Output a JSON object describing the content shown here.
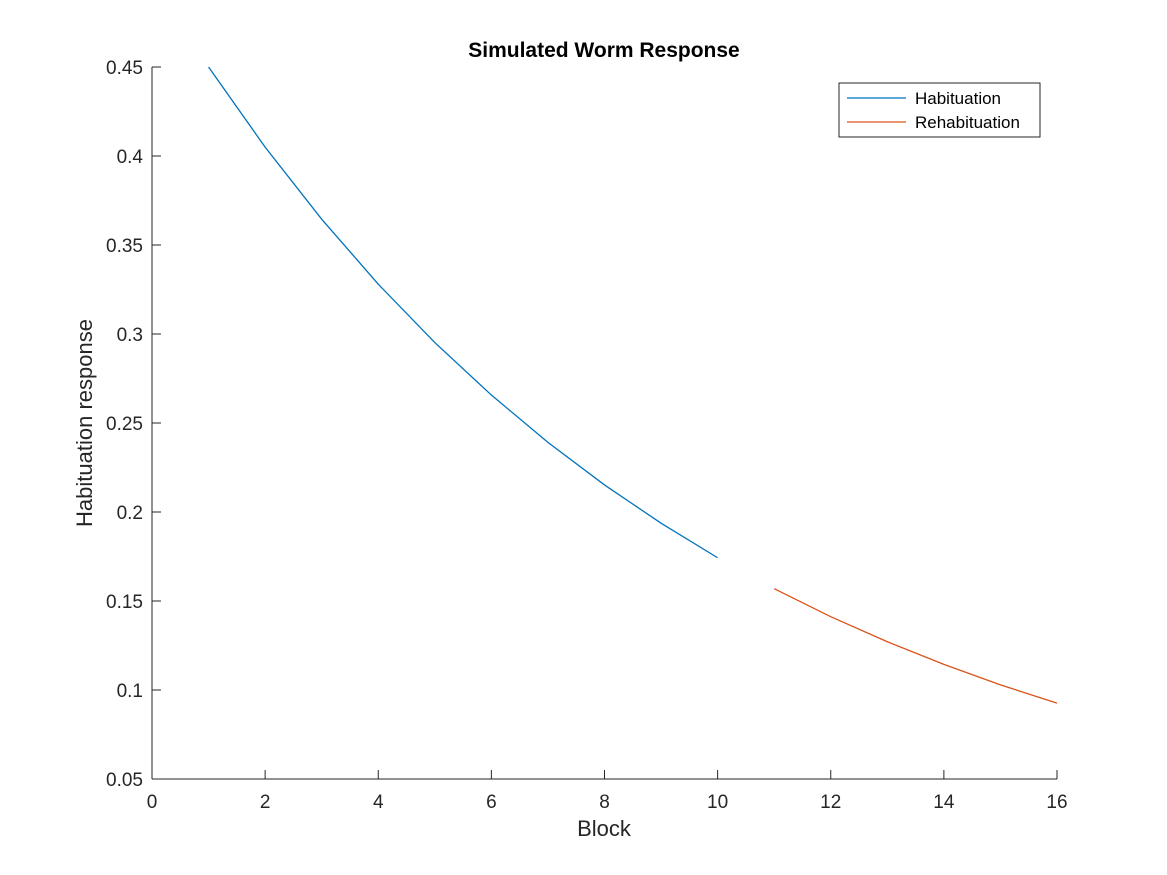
{
  "chart_data": {
    "type": "line",
    "title": "Simulated Worm Response",
    "xlabel": "Block",
    "ylabel": "Habituation response",
    "xlim": [
      0,
      16
    ],
    "ylim": [
      0.05,
      0.45
    ],
    "xticks": [
      0,
      2,
      4,
      6,
      8,
      10,
      12,
      14,
      16
    ],
    "xtick_labels": [
      "0",
      "2",
      "4",
      "6",
      "8",
      "10",
      "12",
      "14",
      "16"
    ],
    "yticks": [
      0.05,
      0.1,
      0.15,
      0.2,
      0.25,
      0.3,
      0.35,
      0.4,
      0.45
    ],
    "ytick_labels": [
      "0.05",
      "0.1",
      "0.15",
      "0.2",
      "0.25",
      "0.3",
      "0.35",
      "0.4",
      "0.45"
    ],
    "grid": false,
    "legend_position": "top-right",
    "series": [
      {
        "name": "Habituation",
        "color": "#0072BD",
        "x": [
          1,
          2,
          3,
          4,
          5,
          6,
          7,
          8,
          9,
          10
        ],
        "y": [
          0.45,
          0.405,
          0.3645,
          0.328,
          0.2952,
          0.2657,
          0.2391,
          0.2152,
          0.1937,
          0.1743
        ]
      },
      {
        "name": "Rehabituation",
        "color": "#D95319",
        "x": [
          11,
          12,
          13,
          14,
          15,
          16
        ],
        "y": [
          0.1569,
          0.1412,
          0.1271,
          0.1144,
          0.1029,
          0.0926
        ]
      }
    ]
  }
}
